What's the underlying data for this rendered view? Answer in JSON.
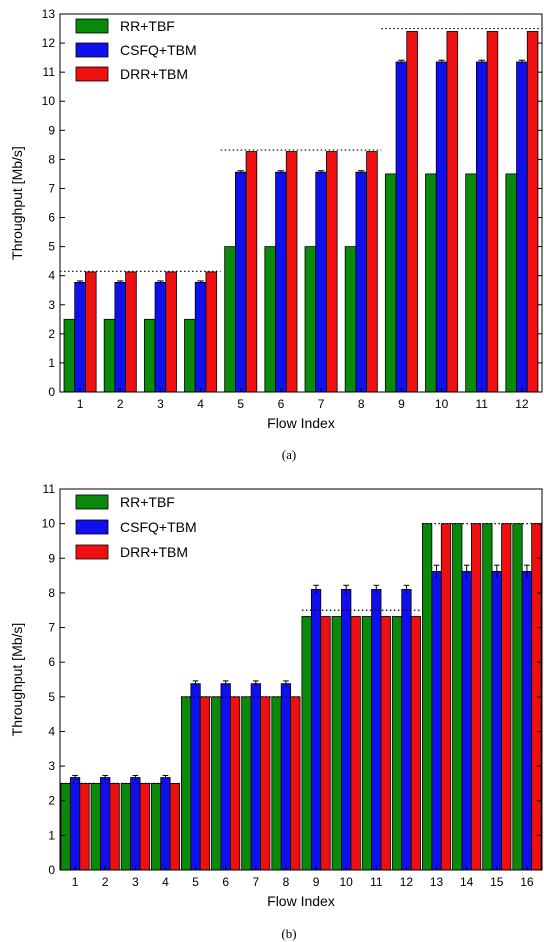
{
  "colors": {
    "rr_tbf": "#0a8a0a",
    "csfq_tbm": "#1010ee",
    "drr_tbm": "#ee1010"
  },
  "chart_data": [
    {
      "type": "bar",
      "caption": "(a)",
      "xlabel": "Flow Index",
      "ylabel": "Throughput [Mb/s]",
      "ylim": [
        0,
        13
      ],
      "yticks": [
        0,
        1,
        2,
        3,
        4,
        5,
        6,
        7,
        8,
        9,
        10,
        11,
        12,
        13
      ],
      "grid": false,
      "legend_position": "top-left",
      "categories": [
        "1",
        "2",
        "3",
        "4",
        "5",
        "6",
        "7",
        "8",
        "9",
        "10",
        "11",
        "12"
      ],
      "series": [
        {
          "name": "RR+TBF",
          "color": "#0a8a0a",
          "values": [
            2.5,
            2.5,
            2.5,
            2.5,
            5.0,
            5.0,
            5.0,
            5.0,
            7.5,
            7.5,
            7.5,
            7.5
          ],
          "error": [
            0,
            0,
            0,
            0,
            0,
            0,
            0,
            0,
            0,
            0,
            0,
            0
          ]
        },
        {
          "name": "CSFQ+TBM",
          "color": "#1010ee",
          "values": [
            3.77,
            3.77,
            3.77,
            3.77,
            7.56,
            7.56,
            7.56,
            7.56,
            11.35,
            11.35,
            11.35,
            11.35
          ],
          "error": [
            0.05,
            0.05,
            0.05,
            0.05,
            0.05,
            0.05,
            0.05,
            0.05,
            0.06,
            0.06,
            0.06,
            0.06
          ]
        },
        {
          "name": "DRR+TBM",
          "color": "#ee1010",
          "values": [
            4.13,
            4.13,
            4.13,
            4.13,
            8.27,
            8.27,
            8.27,
            8.27,
            12.4,
            12.4,
            12.4,
            12.4
          ],
          "error": [
            0,
            0,
            0,
            0,
            0,
            0,
            0,
            0,
            0,
            0,
            0,
            0
          ]
        }
      ],
      "reference_lines": [
        {
          "from": "1",
          "to": "4",
          "value": 4.15
        },
        {
          "from": "5",
          "to": "8",
          "value": 8.32
        },
        {
          "from": "9",
          "to": "12",
          "value": 12.5
        }
      ]
    },
    {
      "type": "bar",
      "caption": "(b)",
      "xlabel": "Flow Index",
      "ylabel": "Throughput [Mb/s]",
      "ylim": [
        0,
        11
      ],
      "yticks": [
        0,
        1,
        2,
        3,
        4,
        5,
        6,
        7,
        8,
        9,
        10,
        11
      ],
      "grid": false,
      "legend_position": "top-left",
      "categories": [
        "1",
        "2",
        "3",
        "4",
        "5",
        "6",
        "7",
        "8",
        "9",
        "10",
        "11",
        "12",
        "13",
        "14",
        "15",
        "16"
      ],
      "series": [
        {
          "name": "RR+TBF",
          "color": "#0a8a0a",
          "values": [
            2.5,
            2.5,
            2.5,
            2.5,
            5.0,
            5.0,
            5.0,
            5.0,
            7.32,
            7.32,
            7.32,
            7.32,
            10.0,
            10.0,
            10.0,
            10.0
          ],
          "error": [
            0,
            0,
            0,
            0,
            0,
            0,
            0,
            0,
            0,
            0,
            0,
            0,
            0,
            0,
            0,
            0
          ]
        },
        {
          "name": "CSFQ+TBM",
          "color": "#1010ee",
          "values": [
            2.67,
            2.67,
            2.67,
            2.67,
            5.38,
            5.38,
            5.38,
            5.38,
            8.1,
            8.1,
            8.1,
            8.1,
            8.62,
            8.62,
            8.62,
            8.62
          ],
          "error": [
            0.06,
            0.06,
            0.06,
            0.06,
            0.08,
            0.08,
            0.08,
            0.08,
            0.12,
            0.12,
            0.12,
            0.12,
            0.18,
            0.18,
            0.18,
            0.18
          ]
        },
        {
          "name": "DRR+TBM",
          "color": "#ee1010",
          "values": [
            2.5,
            2.5,
            2.5,
            2.5,
            5.0,
            5.0,
            5.0,
            5.0,
            7.32,
            7.32,
            7.32,
            7.32,
            10.0,
            10.0,
            10.0,
            10.0
          ],
          "error": [
            0,
            0,
            0,
            0,
            0,
            0,
            0,
            0,
            0,
            0,
            0,
            0,
            0,
            0,
            0,
            0
          ]
        }
      ],
      "reference_lines": [
        {
          "from": "1",
          "to": "4",
          "value": 2.5
        },
        {
          "from": "5",
          "to": "8",
          "value": 5.0
        },
        {
          "from": "9",
          "to": "12",
          "value": 7.5
        },
        {
          "from": "13",
          "to": "16",
          "value": 10.0
        }
      ]
    }
  ]
}
